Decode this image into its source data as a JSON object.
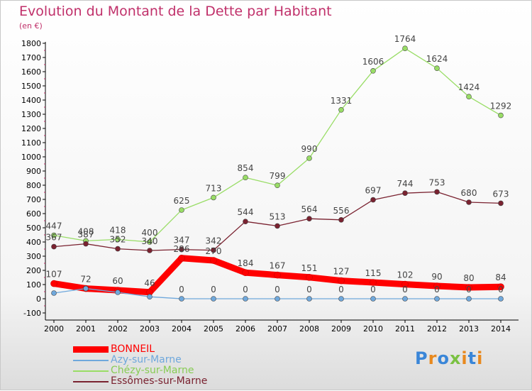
{
  "header": {
    "title": "Evolution du Montant de la Dette par Habitant",
    "subtitle": "(en €)"
  },
  "logo": {
    "text": "Proxiti"
  },
  "colors": {
    "title": "#c0306a",
    "axis": "#000000",
    "tick_marks": "#c0306a"
  },
  "chart_data": {
    "type": "line",
    "x": [
      "2000",
      "2001",
      "2002",
      "2003",
      "2004",
      "2005",
      "2006",
      "2007",
      "2008",
      "2009",
      "2010",
      "2011",
      "2012",
      "2013",
      "2014"
    ],
    "ylim": [
      -100,
      1800
    ],
    "yticks": [
      -100,
      0,
      100,
      200,
      300,
      400,
      500,
      600,
      700,
      800,
      900,
      1000,
      1100,
      1200,
      1300,
      1400,
      1500,
      1600,
      1700,
      1800
    ],
    "grid": false,
    "legend_position": "bottom-left",
    "series": [
      {
        "name": "BONNEIL",
        "color": "#ff0000",
        "values": [
          107,
          72,
          60,
          46,
          286,
          270,
          184,
          167,
          151,
          127,
          115,
          102,
          90,
          80,
          84
        ],
        "labels": [
          "107",
          "72",
          "60",
          "46",
          "286",
          "270",
          "184",
          "167",
          "151",
          "127",
          "115",
          "102",
          "90",
          "80",
          "84"
        ]
      },
      {
        "name": "Azy-sur-Marne",
        "color": "#6fa8dc",
        "values": [
          40,
          72,
          45,
          14,
          0,
          0,
          0,
          0,
          0,
          0,
          0,
          0,
          0,
          0,
          0
        ],
        "labels": [
          "",
          "",
          "",
          "",
          "0",
          "0",
          "0",
          "0",
          "0",
          "0",
          "0",
          "0",
          "0",
          "0",
          "0"
        ]
      },
      {
        "name": "Chézy-sur-Marne",
        "color": "#99dd66",
        "values": [
          447,
          408,
          418,
          400,
          625,
          713,
          854,
          799,
          990,
          1331,
          1606,
          1764,
          1624,
          1424,
          1292
        ],
        "labels": [
          "447",
          "408",
          "418",
          "400",
          "625",
          "713",
          "854",
          "799",
          "990",
          "1331",
          "1606",
          "1764",
          "1624",
          "1424",
          "1292"
        ]
      },
      {
        "name": "Essômes-sur-Marne",
        "color": "#7a2230",
        "values": [
          367,
          387,
          352,
          340,
          347,
          342,
          544,
          513,
          564,
          556,
          697,
          744,
          753,
          680,
          673
        ],
        "labels": [
          "367",
          "387",
          "352",
          "340",
          "347",
          "342",
          "544",
          "513",
          "564",
          "556",
          "697",
          "744",
          "753",
          "680",
          "673"
        ]
      }
    ]
  }
}
